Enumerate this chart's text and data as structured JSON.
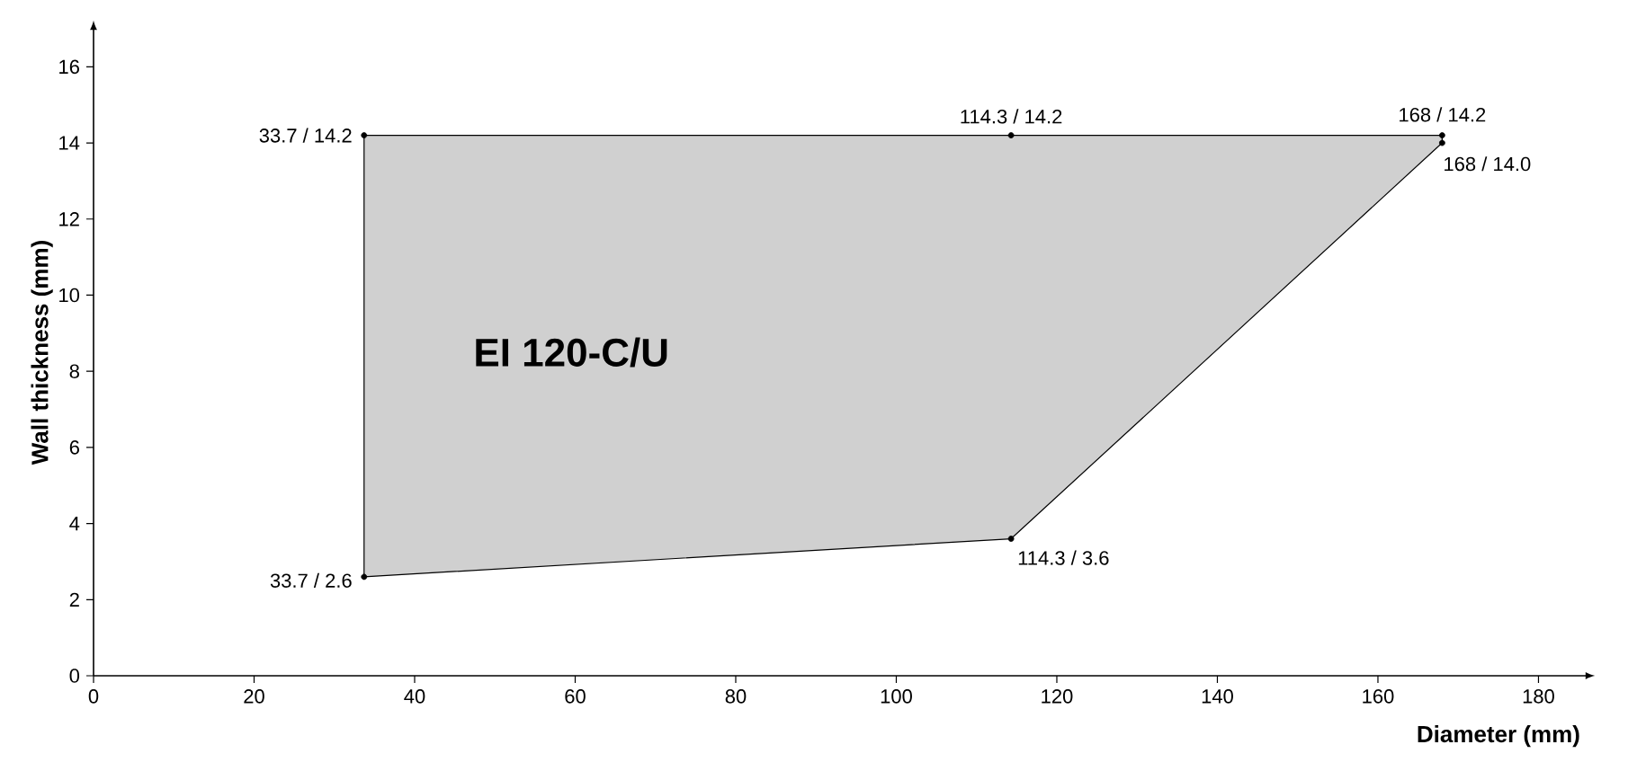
{
  "chart_data": {
    "type": "area",
    "xlabel": "Diameter (mm)",
    "ylabel": "Wall thickness (mm)",
    "xlim": [
      0,
      186
    ],
    "ylim": [
      0,
      17
    ],
    "xticks": [
      0,
      20,
      40,
      60,
      80,
      100,
      120,
      140,
      160,
      180
    ],
    "yticks": [
      0,
      2,
      4,
      6,
      8,
      10,
      12,
      14,
      16
    ],
    "marker": "circle",
    "grid": false,
    "series": [
      {
        "color": "#d0d0d0",
        "x": [
          33.7,
          114.3,
          168,
          168,
          114.3,
          33.7
        ],
        "values": [
          2.6,
          3.6,
          14.0,
          14.2,
          14.2,
          14.2
        ]
      }
    ],
    "annotations": [
      "EI 120-C/U",
      {
        "text": "33.7 / 2.6",
        "x": 33.7,
        "y": 2.6
      },
      {
        "text": "114.3 / 3.6",
        "x": 114.3,
        "y": 3.6
      },
      {
        "text": "168 / 14.0",
        "x": 168,
        "y": 14.0
      },
      {
        "text": "168 / 14.2",
        "x": 168,
        "y": 14.2
      },
      {
        "text": "114.3 / 14.2",
        "x": 114.3,
        "y": 14.2
      },
      {
        "text": "33.7 / 14.2",
        "x": 33.7,
        "y": 14.2
      }
    ]
  }
}
